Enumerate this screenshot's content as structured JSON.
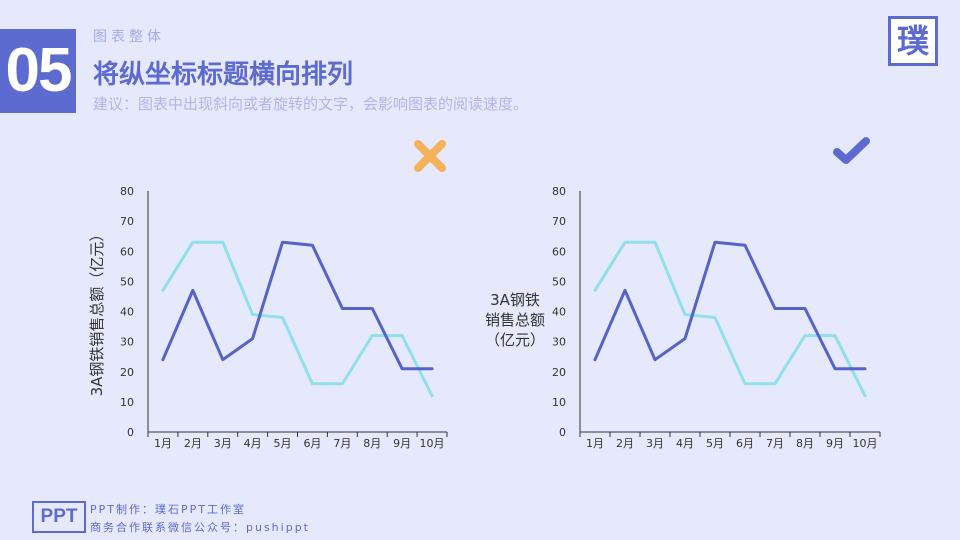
{
  "header": {
    "section_number": "05",
    "section_label": "图表整体",
    "title": "将纵坐标标题横向排列",
    "subtitle": "建议：图表中出现斜向或者旋转的文字，会影响图表的阅读速度。",
    "logo_text": "璞"
  },
  "colors": {
    "accent": "#5d6bd0",
    "series_dark": "#5563c8",
    "series_light": "#8fe0ea",
    "wrong_mark": "#f5b25c",
    "right_mark": "#5d6bd0",
    "background": "#e6e9fb"
  },
  "chart_data": [
    {
      "type": "line",
      "verdict": "wrong",
      "verdict_icon": "cross-icon",
      "x": [
        "1月",
        "2月",
        "3月",
        "4月",
        "5月",
        "6月",
        "7月",
        "8月",
        "9月",
        "10月"
      ],
      "series": [
        {
          "values": [
            24,
            47,
            24,
            31,
            63,
            62,
            41,
            41,
            21,
            21
          ]
        },
        {
          "values": [
            47,
            63,
            63,
            39,
            38,
            16,
            16,
            32,
            32,
            12
          ]
        }
      ],
      "ylabel": "3A钢铁销售总额（亿元）",
      "ylabel_orientation": "rotated",
      "ylim": [
        0,
        80
      ],
      "yticks": [
        "0",
        "10",
        "20",
        "30",
        "40",
        "50",
        "60",
        "70",
        "80"
      ],
      "grid": false,
      "legend": "none"
    },
    {
      "type": "line",
      "verdict": "right",
      "verdict_icon": "check-icon",
      "x": [
        "1月",
        "2月",
        "3月",
        "4月",
        "5月",
        "6月",
        "7月",
        "8月",
        "9月",
        "10月"
      ],
      "series": [
        {
          "values": [
            24,
            47,
            24,
            31,
            63,
            62,
            41,
            41,
            21,
            21
          ]
        },
        {
          "values": [
            47,
            63,
            63,
            39,
            38,
            16,
            16,
            32,
            32,
            12
          ]
        }
      ],
      "ylabel_lines": [
        "3A钢铁",
        "销售总额",
        "（亿元）"
      ],
      "ylabel_orientation": "horizontal",
      "ylim": [
        0,
        80
      ],
      "yticks": [
        "0",
        "10",
        "20",
        "30",
        "40",
        "50",
        "60",
        "70",
        "80"
      ],
      "grid": false,
      "legend": "none"
    }
  ],
  "footer": {
    "badge": "PPT",
    "line1": "PPT制作：璞石PPT工作室",
    "line2": "商务合作联系微信公众号：pushippt"
  }
}
